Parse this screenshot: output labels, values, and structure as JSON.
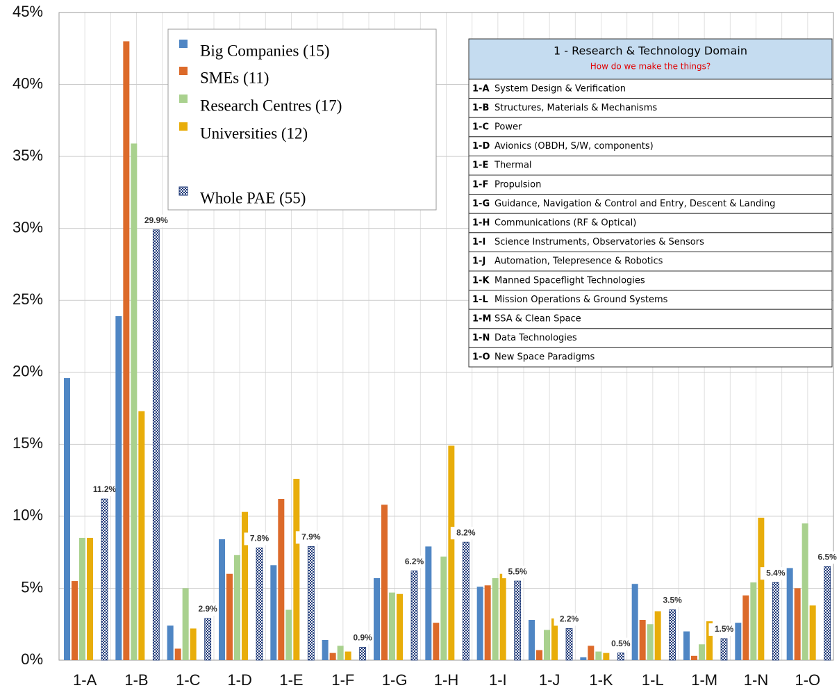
{
  "chart_data": {
    "type": "bar",
    "categories": [
      "1-A",
      "1-B",
      "1-C",
      "1-D",
      "1-E",
      "1-F",
      "1-G",
      "1-H",
      "1-I",
      "1-J",
      "1-K",
      "1-L",
      "1-M",
      "1-N",
      "1-O"
    ],
    "series": [
      {
        "name": "Big Companies (15)",
        "color": "#4f86c4",
        "values": [
          19.6,
          23.9,
          2.4,
          8.4,
          6.6,
          1.4,
          5.7,
          7.9,
          5.1,
          2.8,
          0.2,
          5.3,
          2.0,
          2.6,
          6.4
        ]
      },
      {
        "name": "SMEs (11)",
        "color": "#dc6a2a",
        "values": [
          5.5,
          43.0,
          0.8,
          6.0,
          11.2,
          0.5,
          10.8,
          2.6,
          5.2,
          0.7,
          1.0,
          2.8,
          0.3,
          4.5,
          5.0
        ]
      },
      {
        "name": "Research Centres (17)",
        "color": "#a9d18e",
        "values": [
          8.5,
          35.9,
          5.0,
          7.3,
          3.5,
          1.0,
          4.7,
          7.2,
          5.7,
          2.1,
          0.6,
          2.5,
          1.1,
          5.4,
          9.5
        ]
      },
      {
        "name": "Universities (12)",
        "color": "#e8ad0a",
        "values": [
          8.5,
          17.3,
          2.2,
          10.3,
          12.6,
          0.6,
          4.6,
          14.9,
          6.0,
          2.9,
          0.5,
          3.4,
          2.7,
          9.9,
          3.8
        ]
      },
      {
        "name": "Whole PAE (55)",
        "color": "#1f3a78",
        "pattern": "checker",
        "values": [
          11.2,
          29.9,
          2.9,
          7.8,
          7.9,
          0.9,
          6.2,
          8.2,
          5.5,
          2.2,
          0.5,
          3.5,
          1.5,
          5.4,
          6.5
        ],
        "value_labels": [
          "11.2%",
          "29.9%",
          "2.9%",
          "7.8%",
          "7.9%",
          "0.9%",
          "6.2%",
          "8.2%",
          "5.5%",
          "2.2%",
          "0.5%",
          "3.5%",
          "1.5%",
          "5.4%",
          "6.5%"
        ]
      }
    ],
    "ylim": [
      0,
      45
    ],
    "yticks": [
      {
        "value": 0,
        "label": "0%"
      },
      {
        "value": 5,
        "label": "5%"
      },
      {
        "value": 10,
        "label": "10%"
      },
      {
        "value": 15,
        "label": "15%"
      },
      {
        "value": 20,
        "label": "20%"
      },
      {
        "value": 25,
        "label": "25%"
      },
      {
        "value": 30,
        "label": "30%"
      },
      {
        "value": 35,
        "label": "35%"
      },
      {
        "value": 40,
        "label": "40%"
      },
      {
        "value": 45,
        "label": "45%"
      }
    ],
    "grid": true
  },
  "table": {
    "title": "1 - Research & Technology Domain",
    "subtitle": "How do we make the things?",
    "rows": [
      [
        "1-A",
        "System Design & Verification"
      ],
      [
        "1-B",
        "Structures, Materials & Mechanisms"
      ],
      [
        "1-C",
        "Power"
      ],
      [
        "1-D",
        "Avionics (OBDH, S/W, components)"
      ],
      [
        "1-E",
        "Thermal"
      ],
      [
        "1-F",
        "Propulsion"
      ],
      [
        "1-G",
        "Guidance, Navigation & Control and Entry, Descent & Landing"
      ],
      [
        "1-H",
        "Communications (RF & Optical)"
      ],
      [
        "1-I",
        "Science Instruments, Observatories & Sensors"
      ],
      [
        "1-J",
        "Automation, Telepresence & Robotics"
      ],
      [
        "1-K",
        "Manned Spaceflight Technologies"
      ],
      [
        "1-L",
        "Mission Operations & Ground Systems"
      ],
      [
        "1-M",
        "SSA & Clean Space"
      ],
      [
        "1-N",
        "Data Technologies"
      ],
      [
        "1-O",
        "New Space Paradigms"
      ]
    ]
  }
}
